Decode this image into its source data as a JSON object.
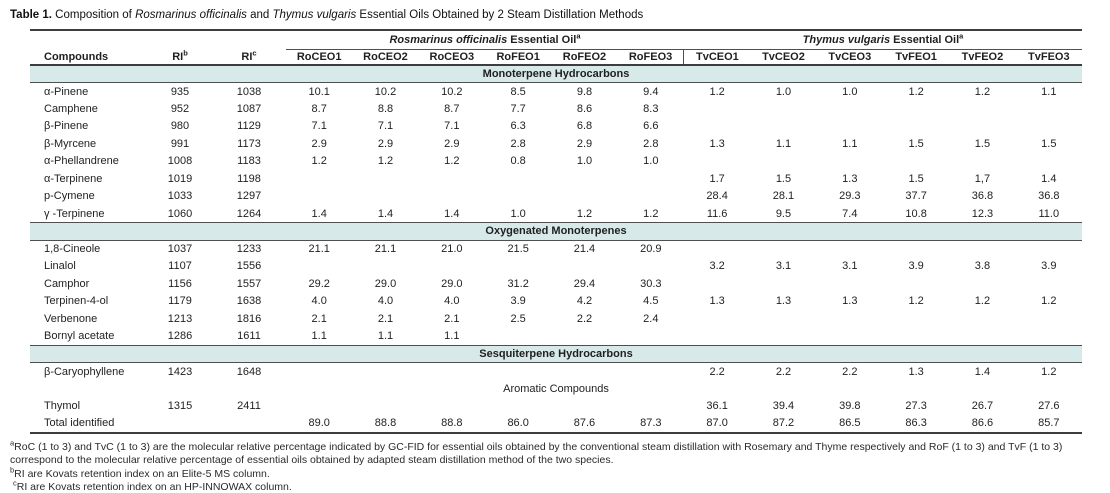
{
  "title": {
    "prefix": "Table 1.",
    "s1": " Composition of ",
    "it1": "Rosmarinus officinalis",
    "s2": " and ",
    "it2": "Thymus vulgaris",
    "s3": " Essential Oils Obtained by 2 Steam Distillation Methods"
  },
  "header": {
    "compounds": "Compounds",
    "ri_b": {
      "label": "RI",
      "sup": "b"
    },
    "ri_c": {
      "label": "RI",
      "sup": "c"
    },
    "group1": {
      "italic": "Rosmarinus officinalis",
      "rest": " Essential Oil",
      "sup": "a"
    },
    "group2": {
      "italic": "Thymus vulgaris",
      "rest": " Essential Oil",
      "sup": "a"
    },
    "samples": [
      "RoCEO1",
      "RoCEO2",
      "RoCEO3",
      "RoFEO1",
      "RoFEO2",
      "RoFEO3",
      "TvCEO1",
      "TvCEO2",
      "TvCEO3",
      "TvFEO1",
      "TvFEO2",
      "TvFEO3"
    ]
  },
  "sections": [
    {
      "label": "Monoterpene Hydrocarbons",
      "band": true,
      "rows": [
        {
          "compound": "α-Pinene",
          "ri_b": "935",
          "ri_c": "1038",
          "values": [
            "10.1",
            "10.2",
            "10.2",
            "8.5",
            "9.8",
            "9.4",
            "1.2",
            "1.0",
            "1.0",
            "1.2",
            "1.2",
            "1.1"
          ]
        },
        {
          "compound": "Camphene",
          "ri_b": "952",
          "ri_c": "1087",
          "values": [
            "8.7",
            "8.8",
            "8.7",
            "7.7",
            "8.6",
            "8.3",
            "",
            "",
            "",
            "",
            "",
            ""
          ]
        },
        {
          "compound": "β-Pinene",
          "ri_b": "980",
          "ri_c": "1129",
          "values": [
            "7.1",
            "7.1",
            "7.1",
            "6.3",
            "6.8",
            "6.6",
            "",
            "",
            "",
            "",
            "",
            ""
          ]
        },
        {
          "compound": "β-Myrcene",
          "ri_b": "991",
          "ri_c": "1173",
          "values": [
            "2.9",
            "2.9",
            "2.9",
            "2.8",
            "2.9",
            "2.8",
            "1.3",
            "1.1",
            "1.1",
            "1.5",
            "1.5",
            "1.5"
          ]
        },
        {
          "compound": "α-Phellandrene",
          "ri_b": "1008",
          "ri_c": "1183",
          "values": [
            "1.2",
            "1.2",
            "1.2",
            "0.8",
            "1.0",
            "1.0",
            "",
            "",
            "",
            "",
            "",
            ""
          ]
        },
        {
          "compound": "α-Terpinene",
          "ri_b": "1019",
          "ri_c": "1198",
          "values": [
            "",
            "",
            "",
            "",
            "",
            "",
            "1.7",
            "1.5",
            "1.3",
            "1.5",
            "1,7",
            "1.4"
          ]
        },
        {
          "compound": "p-Cymene",
          "ri_b": "1033",
          "ri_c": "1297",
          "values": [
            "",
            "",
            "",
            "",
            "",
            "",
            "28.4",
            "28.1",
            "29.3",
            "37.7",
            "36.8",
            "36.8"
          ]
        },
        {
          "compound": "γ -Terpinene",
          "ri_b": "1060",
          "ri_c": "1264",
          "values": [
            "1.4",
            "1.4",
            "1.4",
            "1.0",
            "1.2",
            "1.2",
            "11.6",
            "9.5",
            "7.4",
            "10.8",
            "12.3",
            "11.0"
          ]
        }
      ]
    },
    {
      "label": "Oxygenated Monoterpenes",
      "band": true,
      "rows": [
        {
          "compound": "1,8-Cineole",
          "ri_b": "1037",
          "ri_c": "1233",
          "values": [
            "21.1",
            "21.1",
            "21.0",
            "21.5",
            "21.4",
            "20.9",
            "",
            "",
            "",
            "",
            "",
            ""
          ]
        },
        {
          "compound": "Linalol",
          "ri_b": "1107",
          "ri_c": "1556",
          "values": [
            "",
            "",
            "",
            "",
            "",
            "",
            "3.2",
            "3.1",
            "3.1",
            "3.9",
            "3.8",
            "3.9"
          ]
        },
        {
          "compound": "Camphor",
          "ri_b": "1156",
          "ri_c": "1557",
          "values": [
            "29.2",
            "29.0",
            "29.0",
            "31.2",
            "29.4",
            "30.3",
            "",
            "",
            "",
            "",
            "",
            ""
          ]
        },
        {
          "compound": "Terpinen-4-ol",
          "ri_b": "1179",
          "ri_c": "1638",
          "values": [
            "4.0",
            "4.0",
            "4.0",
            "3.9",
            "4.2",
            "4.5",
            "1.3",
            "1.3",
            "1.3",
            "1.2",
            "1.2",
            "1.2"
          ]
        },
        {
          "compound": "Verbenone",
          "ri_b": "1213",
          "ri_c": "1816",
          "values": [
            "2.1",
            "2.1",
            "2.1",
            "2.5",
            "2.2",
            "2.4",
            "",
            "",
            "",
            "",
            "",
            ""
          ]
        },
        {
          "compound": "Bornyl acetate",
          "ri_b": "1286",
          "ri_c": "1611",
          "values": [
            "1.1",
            "1.1",
            "1.1",
            "",
            "",
            "",
            "",
            "",
            "",
            "",
            "",
            ""
          ]
        }
      ]
    },
    {
      "label": "Sesquiterpene Hydrocarbons",
      "band": true,
      "rows": [
        {
          "compound": "β-Caryophyllene",
          "ri_b": "1423",
          "ri_c": "1648",
          "values": [
            "",
            "",
            "",
            "",
            "",
            "",
            "2.2",
            "2.2",
            "2.2",
            "1.3",
            "1.4",
            "1.2"
          ]
        }
      ]
    },
    {
      "label": "Aromatic Compounds",
      "band": false,
      "rows": [
        {
          "compound": "Thymol",
          "ri_b": "1315",
          "ri_c": "2411",
          "values": [
            "",
            "",
            "",
            "",
            "",
            "",
            "36.1",
            "39.4",
            "39.8",
            "27.3",
            "26.7",
            "27.6"
          ]
        },
        {
          "compound": "Total identified",
          "ri_b": "",
          "ri_c": "",
          "values": [
            "89.0",
            "88.8",
            "88.8",
            "86.0",
            "87.6",
            "87.3",
            "87.0",
            "87.2",
            "86.5",
            "86.3",
            "86.6",
            "85.7"
          ]
        }
      ]
    }
  ],
  "footnotes": [
    {
      "sup": "a",
      "text": "RoC (1 to 3) and TvC (1 to 3) are the molecular relative percentage indicated by GC-FID for essential oils obtained by the conventional steam distillation with Rosemary and Thyme respectively and RoF (1 to 3) and TvF (1 to 3) correspond to the molecular relative percentage of essential oils obtained by adapted steam distillation method of the two species."
    },
    {
      "sup": "b",
      "text": "RI are Kovats retention index on an Elite-5 MS column."
    },
    {
      "sup": "c",
      "text": "RI are Kovats retention index on an HP-INNOWAX column."
    }
  ],
  "colors": {
    "section_band": "#d8e9ea",
    "rule_dark": "#3d3d3d",
    "rule_mid": "#4f4f4f",
    "text": "#1f1f1f"
  }
}
